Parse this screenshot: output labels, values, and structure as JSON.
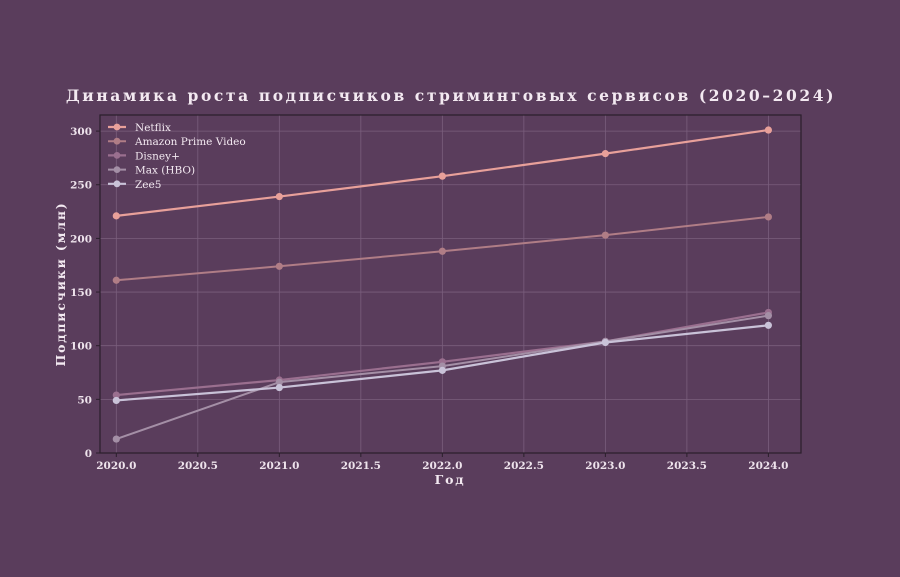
{
  "chart_data": {
    "type": "line",
    "title": "Динамика роста подписчиков стриминговых сервисов (2020–2024)",
    "xlabel": "Год",
    "ylabel": "Подписчики (млн)",
    "x": [
      2020,
      2021,
      2022,
      2023,
      2024
    ],
    "xlim": [
      2019.9,
      2024.2
    ],
    "ylim": [
      0,
      315
    ],
    "xticks": [
      2020.0,
      2020.5,
      2021.0,
      2021.5,
      2022.0,
      2022.5,
      2023.0,
      2023.5,
      2024.0
    ],
    "xtick_labels": [
      "2020.0",
      "2020.5",
      "2021.0",
      "2021.5",
      "2022.0",
      "2022.5",
      "2023.0",
      "2023.5",
      "2024.0"
    ],
    "yticks": [
      0,
      50,
      100,
      150,
      200,
      250,
      300
    ],
    "ytick_labels": [
      "0",
      "50",
      "100",
      "150",
      "200",
      "250",
      "300"
    ],
    "grid": true,
    "legend_position": "top-left",
    "series": [
      {
        "name": "Netflix",
        "values": [
          221,
          239,
          258,
          279,
          301
        ],
        "color": "#e8a09a",
        "width": 2.2
      },
      {
        "name": "Amazon Prime Video",
        "values": [
          161,
          174,
          188,
          203,
          220
        ],
        "color": "#b07d86",
        "width": 2.0
      },
      {
        "name": "Disney+",
        "values": [
          54,
          68,
          85,
          104,
          131
        ],
        "color": "#9a6f8f",
        "width": 2.2
      },
      {
        "name": "Max (HBO)",
        "values": [
          13,
          66,
          81,
          104,
          128
        ],
        "color": "#a48fa6",
        "width": 2.0
      },
      {
        "name": "Zee5",
        "values": [
          49,
          61,
          77,
          103,
          119
        ],
        "color": "#c9c2d8",
        "width": 2.2
      }
    ]
  },
  "colors": {
    "background": "#5a3d5c",
    "plot_background": "#5a3d5c",
    "grid": "#7a5e7d",
    "axes": "#2a1f2b",
    "text": "#f3e9f1"
  }
}
